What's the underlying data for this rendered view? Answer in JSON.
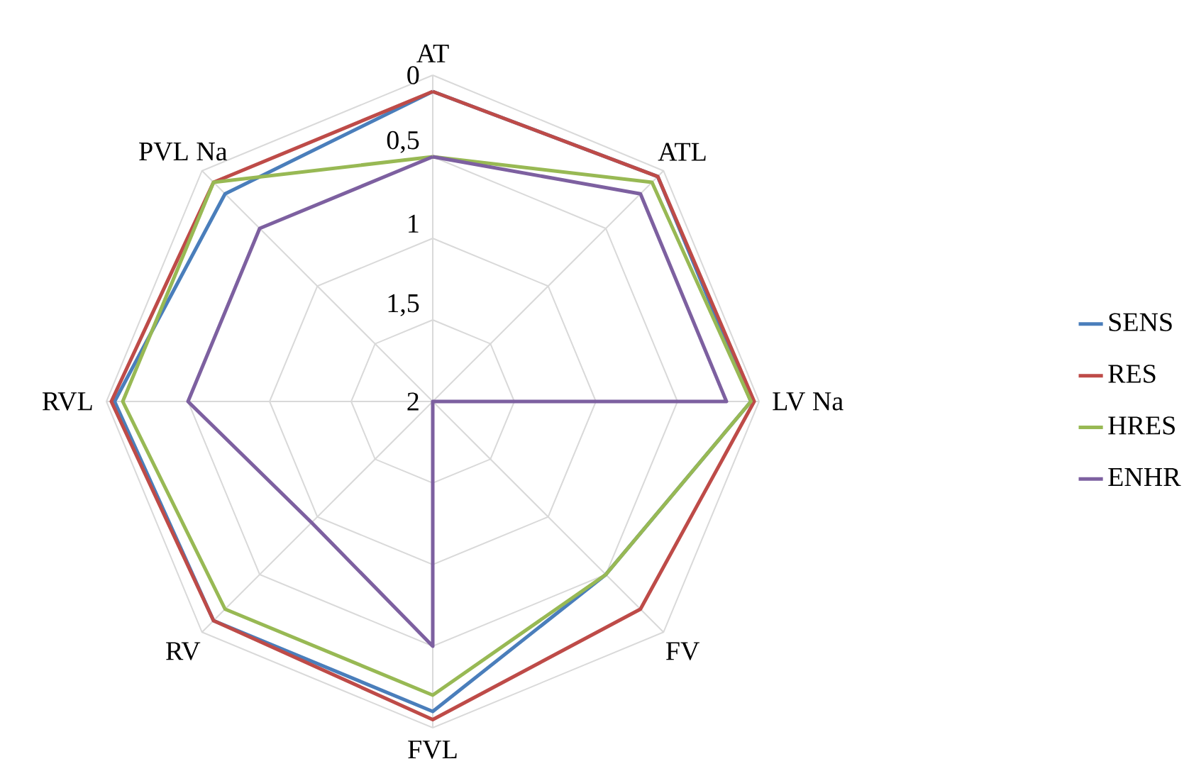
{
  "chart_data": {
    "type": "radar",
    "categories": [
      "AT",
      "ATL",
      "LV Na",
      "FV",
      "FVL",
      "RV",
      "RVL",
      "PVL Na"
    ],
    "series": [
      {
        "name": "SENS",
        "color": "#4a7ebb",
        "values": [
          0.1,
          0.05,
          0.05,
          0.5,
          0.1,
          0.1,
          0.05,
          0.2
        ]
      },
      {
        "name": "RES",
        "color": "#be4b48",
        "values": [
          0.1,
          0.05,
          0.03,
          0.2,
          0.05,
          0.1,
          0.03,
          0.1
        ]
      },
      {
        "name": "HRES",
        "color": "#98b954",
        "values": [
          0.5,
          0.1,
          0.05,
          0.5,
          0.2,
          0.2,
          0.1,
          0.1
        ]
      },
      {
        "name": "ENHR",
        "color": "#7d60a0",
        "values": [
          0.5,
          0.2,
          0.2,
          2,
          0.5,
          0.95,
          0.5,
          0.5
        ]
      }
    ],
    "ylim": [
      2,
      0
    ],
    "yticks": [
      0,
      {
        "value": 0.5,
        "label": "0,5"
      },
      1,
      {
        "value": 1.5,
        "label": "1,5"
      },
      2
    ],
    "grid": true,
    "legend": "right",
    "marker": "none",
    "line_style": "solid"
  }
}
